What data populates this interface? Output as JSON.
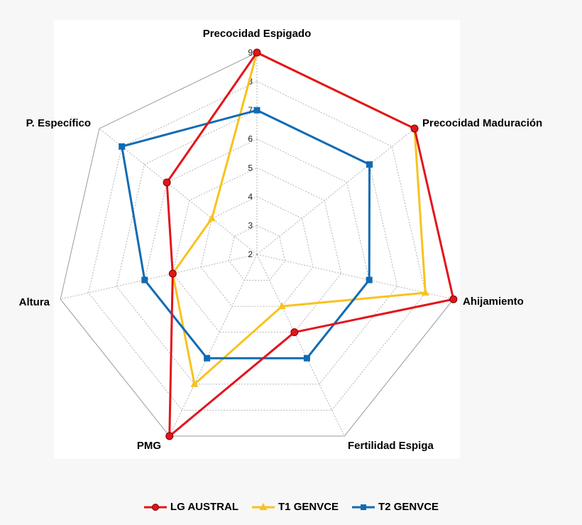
{
  "chart_data": {
    "type": "radar",
    "axes": [
      "Precocidad Espigado",
      "Precocidad Maduración",
      "Ahijamiento",
      "Fertilidad Espiga",
      "PMG",
      "Altura",
      "P. Específico"
    ],
    "radial_range": [
      2,
      9
    ],
    "ticks": [
      "2",
      "3",
      "4",
      "5",
      "6",
      "7",
      "8",
      "9"
    ],
    "grid": true,
    "legend_position": "bottom",
    "series": [
      {
        "name": "LG AUSTRAL",
        "color": "#e3141c",
        "marker": "circle",
        "values": [
          9,
          9,
          9,
          5,
          9,
          5,
          6
        ]
      },
      {
        "name": "T1 GENVCE",
        "color": "#f9c21d",
        "marker": "triangle",
        "values": [
          9,
          9,
          8,
          4,
          7,
          5,
          4
        ]
      },
      {
        "name": "T2 GENVCE",
        "color": "#106bb4",
        "marker": "square",
        "values": [
          7,
          7,
          6,
          6,
          6,
          6,
          8
        ]
      }
    ]
  }
}
